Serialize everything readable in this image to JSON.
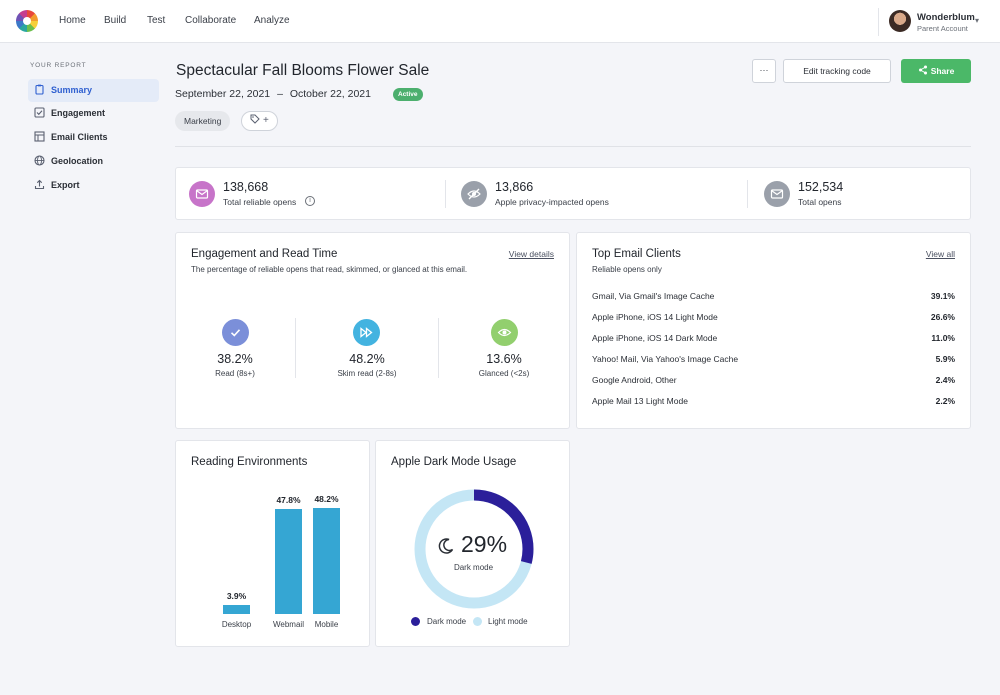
{
  "nav": {
    "items": [
      "Home",
      "Build",
      "Test",
      "Collaborate",
      "Analyze"
    ]
  },
  "user": {
    "name": "Wonderblum",
    "role": "Parent Account"
  },
  "sidebar": {
    "heading": "YOUR REPORT",
    "items": [
      {
        "label": "Summary",
        "icon": "clipboard-icon",
        "active": true
      },
      {
        "label": "Engagement",
        "icon": "checkbox-icon",
        "active": false
      },
      {
        "label": "Email Clients",
        "icon": "layout-icon",
        "active": false
      },
      {
        "label": "Geolocation",
        "icon": "globe-icon",
        "active": false
      },
      {
        "label": "Export",
        "icon": "upload-icon",
        "active": false
      }
    ]
  },
  "header": {
    "title": "Spectacular Fall Blooms Flower Sale",
    "start_date": "September 22, 2021",
    "date_sep": "–",
    "end_date": "October 22, 2021",
    "status": "Active",
    "tag": "Marketing",
    "more_label": "···",
    "edit_label": "Edit tracking code",
    "share_label": "Share"
  },
  "stats": [
    {
      "value": "138,668",
      "label": "Total reliable opens",
      "icon": "mail-check-icon",
      "color": "#c774c9"
    },
    {
      "value": "13,866",
      "label": "Apple privacy-impacted opens",
      "icon": "eye-off-icon",
      "color": "#9aa0aa"
    },
    {
      "value": "152,534",
      "label": "Total opens",
      "icon": "mail-icon",
      "color": "#9aa0aa"
    }
  ],
  "engagement": {
    "title": "Engagement and Read Time",
    "subtitle": "The percentage of reliable opens that read, skimmed, or glanced at this email.",
    "link": "View details",
    "items": [
      {
        "value": "38.2%",
        "label": "Read (8s+)",
        "icon": "check-icon",
        "color": "#7b8fd9"
      },
      {
        "value": "48.2%",
        "label": "Skim read (2-8s)",
        "icon": "fast-forward-icon",
        "color": "#43b3e0"
      },
      {
        "value": "13.6%",
        "label": "Glanced (<2s)",
        "icon": "eye-icon",
        "color": "#92cf6e"
      }
    ]
  },
  "clients": {
    "title": "Top Email Clients",
    "subtitle": "Reliable opens only",
    "link": "View all",
    "rows": [
      {
        "name": "Gmail, Via Gmail's Image Cache",
        "pct": "39.1%"
      },
      {
        "name": "Apple iPhone, iOS 14 Light Mode",
        "pct": "26.6%"
      },
      {
        "name": "Apple iPhone, iOS 14 Dark Mode",
        "pct": "11.0%"
      },
      {
        "name": "Yahoo! Mail, Via Yahoo's Image Cache",
        "pct": "5.9%"
      },
      {
        "name": "Google Android, Other",
        "pct": "2.4%"
      },
      {
        "name": "Apple Mail 13 Light Mode",
        "pct": "2.2%"
      }
    ]
  },
  "reading": {
    "title": "Reading Environments"
  },
  "darkmode": {
    "title": "Apple Dark Mode Usage"
  },
  "chart_data": [
    {
      "type": "bar",
      "title": "Reading Environments",
      "categories": [
        "Desktop",
        "Webmail",
        "Mobile"
      ],
      "values": [
        3.9,
        47.8,
        48.2
      ],
      "value_labels": [
        "3.9%",
        "47.8%",
        "48.2%"
      ],
      "ylim": [
        0,
        50
      ],
      "color": "#35a6d3",
      "grid": false
    },
    {
      "type": "pie",
      "title": "Apple Dark Mode Usage",
      "center_value": "29%",
      "center_label": "Dark mode",
      "series": [
        {
          "name": "Dark mode",
          "value": 29,
          "color": "#2b1f9a"
        },
        {
          "name": "Light mode",
          "value": 71,
          "color": "#c4e6f5"
        }
      ],
      "legend": "bottom"
    }
  ]
}
